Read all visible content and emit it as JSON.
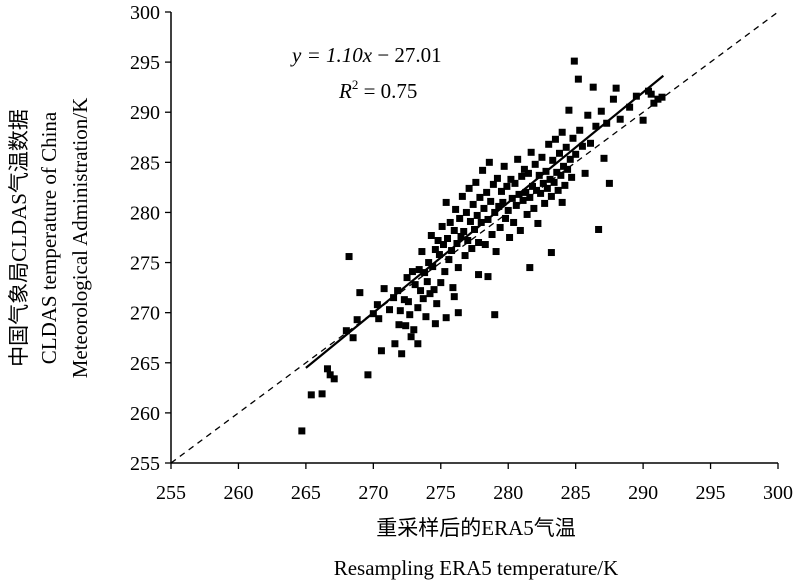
{
  "chart_data": {
    "type": "scatter",
    "xlabel_cn": "重采样后的ERA5气温",
    "xlabel_en": "Resampling ERA5 temperature/K",
    "ylabel_cn": "中国气象局CLDAS气温数据",
    "ylabel_en1": "CLDAS temperature of China",
    "ylabel_en2": "Meteorological Administration/K",
    "xlim": [
      255,
      300
    ],
    "ylim": [
      255,
      300
    ],
    "xticks": [
      255,
      260,
      265,
      270,
      275,
      280,
      285,
      290,
      295,
      300
    ],
    "yticks": [
      255,
      260,
      265,
      270,
      275,
      280,
      285,
      290,
      295,
      300
    ],
    "grid": false,
    "equation": {
      "prefix": "y = 1.10",
      "var": "x",
      "suffix": " − 27.01"
    },
    "r2": {
      "label": "R",
      "sup": "2",
      "value": " = 0.75"
    },
    "fit": {
      "slope": 1.1,
      "intercept": -27.01,
      "x_range": [
        265,
        291.5
      ]
    },
    "reference_line": {
      "type": "1:1",
      "style": "dashed"
    },
    "series": [
      {
        "marker": "square",
        "color": "#000000",
        "points": [
          [
            264.7,
            258.2
          ],
          [
            265.4,
            261.8
          ],
          [
            266.2,
            261.9
          ],
          [
            266.6,
            264.4
          ],
          [
            267.1,
            263.4
          ],
          [
            266.8,
            263.8
          ],
          [
            268.0,
            268.2
          ],
          [
            268.2,
            275.6
          ],
          [
            268.5,
            267.5
          ],
          [
            268.8,
            269.3
          ],
          [
            269.0,
            272.0
          ],
          [
            269.6,
            263.8
          ],
          [
            270.0,
            269.9
          ],
          [
            270.3,
            270.8
          ],
          [
            270.4,
            269.4
          ],
          [
            270.6,
            266.2
          ],
          [
            270.8,
            272.4
          ],
          [
            271.2,
            270.3
          ],
          [
            271.5,
            271.5
          ],
          [
            271.6,
            266.9
          ],
          [
            271.8,
            272.2
          ],
          [
            271.9,
            268.8
          ],
          [
            272.0,
            270.2
          ],
          [
            272.1,
            265.9
          ],
          [
            272.3,
            271.3
          ],
          [
            272.4,
            268.7
          ],
          [
            272.5,
            273.5
          ],
          [
            272.6,
            271.1
          ],
          [
            272.7,
            269.8
          ],
          [
            272.9,
            274.1
          ],
          [
            273.0,
            268.3
          ],
          [
            273.1,
            272.8
          ],
          [
            273.3,
            270.5
          ],
          [
            273.4,
            274.3
          ],
          [
            273.5,
            272.2
          ],
          [
            273.6,
            276.1
          ],
          [
            273.7,
            271.4
          ],
          [
            273.8,
            274.0
          ],
          [
            273.9,
            269.6
          ],
          [
            274.0,
            273.1
          ],
          [
            274.1,
            275.0
          ],
          [
            274.2,
            271.9
          ],
          [
            274.3,
            277.7
          ],
          [
            274.4,
            274.6
          ],
          [
            274.5,
            272.3
          ],
          [
            274.6,
            276.3
          ],
          [
            274.7,
            270.9
          ],
          [
            274.8,
            277.2
          ],
          [
            274.9,
            275.8
          ],
          [
            275.0,
            273.0
          ],
          [
            275.1,
            278.6
          ],
          [
            275.2,
            276.8
          ],
          [
            275.3,
            274.1
          ],
          [
            275.4,
            281.0
          ],
          [
            275.5,
            277.4
          ],
          [
            275.6,
            275.3
          ],
          [
            275.7,
            279.0
          ],
          [
            275.8,
            276.2
          ],
          [
            275.9,
            272.5
          ],
          [
            276.0,
            278.2
          ],
          [
            276.1,
            280.3
          ],
          [
            276.2,
            276.9
          ],
          [
            276.3,
            274.5
          ],
          [
            276.4,
            279.4
          ],
          [
            276.5,
            277.6
          ],
          [
            276.6,
            281.6
          ],
          [
            276.7,
            278.1
          ],
          [
            276.8,
            275.7
          ],
          [
            276.9,
            280.0
          ],
          [
            277.0,
            277.2
          ],
          [
            277.1,
            282.4
          ],
          [
            277.2,
            279.1
          ],
          [
            277.3,
            276.4
          ],
          [
            277.4,
            280.8
          ],
          [
            277.5,
            278.3
          ],
          [
            277.6,
            283.0
          ],
          [
            277.7,
            279.7
          ],
          [
            277.8,
            277.0
          ],
          [
            277.9,
            281.5
          ],
          [
            278.0,
            279.0
          ],
          [
            278.1,
            284.2
          ],
          [
            278.2,
            280.4
          ],
          [
            278.3,
            276.8
          ],
          [
            278.4,
            282.0
          ],
          [
            278.5,
            279.3
          ],
          [
            278.6,
            285.0
          ],
          [
            278.7,
            281.1
          ],
          [
            278.8,
            277.8
          ],
          [
            278.9,
            282.8
          ],
          [
            279.0,
            280.0
          ],
          [
            279.1,
            276.1
          ],
          [
            279.2,
            283.4
          ],
          [
            279.3,
            280.6
          ],
          [
            279.4,
            278.5
          ],
          [
            279.5,
            282.1
          ],
          [
            279.6,
            281.0
          ],
          [
            279.7,
            284.6
          ],
          [
            279.8,
            279.4
          ],
          [
            279.9,
            282.6
          ],
          [
            280.0,
            280.2
          ],
          [
            280.1,
            277.5
          ],
          [
            280.2,
            283.3
          ],
          [
            280.3,
            281.4
          ],
          [
            280.4,
            279.0
          ],
          [
            280.5,
            282.9
          ],
          [
            280.6,
            280.7
          ],
          [
            280.7,
            285.3
          ],
          [
            280.8,
            281.8
          ],
          [
            280.9,
            278.2
          ],
          [
            281.0,
            283.6
          ],
          [
            281.1,
            281.2
          ],
          [
            281.2,
            284.3
          ],
          [
            281.3,
            282.0
          ],
          [
            281.4,
            279.8
          ],
          [
            281.5,
            283.9
          ],
          [
            281.6,
            281.5
          ],
          [
            281.7,
            286.0
          ],
          [
            281.8,
            282.6
          ],
          [
            281.9,
            280.4
          ],
          [
            282.0,
            284.8
          ],
          [
            282.1,
            282.2
          ],
          [
            282.2,
            278.9
          ],
          [
            282.3,
            283.7
          ],
          [
            282.4,
            281.9
          ],
          [
            282.5,
            285.5
          ],
          [
            282.6,
            282.9
          ],
          [
            282.7,
            280.9
          ],
          [
            282.8,
            284.1
          ],
          [
            282.9,
            282.4
          ],
          [
            283.0,
            286.8
          ],
          [
            283.1,
            283.3
          ],
          [
            283.2,
            281.6
          ],
          [
            283.3,
            285.2
          ],
          [
            283.4,
            283.0
          ],
          [
            283.5,
            287.3
          ],
          [
            283.6,
            284.0
          ],
          [
            283.7,
            282.2
          ],
          [
            283.8,
            285.9
          ],
          [
            283.9,
            283.7
          ],
          [
            284.0,
            288.0
          ],
          [
            284.1,
            284.6
          ],
          [
            284.2,
            282.7
          ],
          [
            284.3,
            286.5
          ],
          [
            284.4,
            284.3
          ],
          [
            284.5,
            290.2
          ],
          [
            284.6,
            285.3
          ],
          [
            284.7,
            283.5
          ],
          [
            284.8,
            287.4
          ],
          [
            284.9,
            295.1
          ],
          [
            285.0,
            285.8
          ],
          [
            285.2,
            293.3
          ],
          [
            285.3,
            288.2
          ],
          [
            285.5,
            286.6
          ],
          [
            285.7,
            283.9
          ],
          [
            285.9,
            289.7
          ],
          [
            286.1,
            286.9
          ],
          [
            286.3,
            292.5
          ],
          [
            286.5,
            288.6
          ],
          [
            286.7,
            278.3
          ],
          [
            286.9,
            290.1
          ],
          [
            287.1,
            285.4
          ],
          [
            287.3,
            288.9
          ],
          [
            287.5,
            282.9
          ],
          [
            287.8,
            291.3
          ],
          [
            288.0,
            292.4
          ],
          [
            288.3,
            289.3
          ],
          [
            289.0,
            290.5
          ],
          [
            289.5,
            291.6
          ],
          [
            290.0,
            289.2
          ],
          [
            290.4,
            292.1
          ],
          [
            290.8,
            290.9
          ],
          [
            291.1,
            291.3
          ],
          [
            291.4,
            291.5
          ],
          [
            290.6,
            291.8
          ],
          [
            272.8,
            267.6
          ],
          [
            273.3,
            266.9
          ],
          [
            274.6,
            268.9
          ],
          [
            276.3,
            270.0
          ],
          [
            277.8,
            273.8
          ],
          [
            279.0,
            269.8
          ],
          [
            281.6,
            274.5
          ],
          [
            283.2,
            276.0
          ],
          [
            284.0,
            281.0
          ],
          [
            278.5,
            273.6
          ],
          [
            276.0,
            271.6
          ],
          [
            275.4,
            269.5
          ]
        ]
      }
    ]
  }
}
